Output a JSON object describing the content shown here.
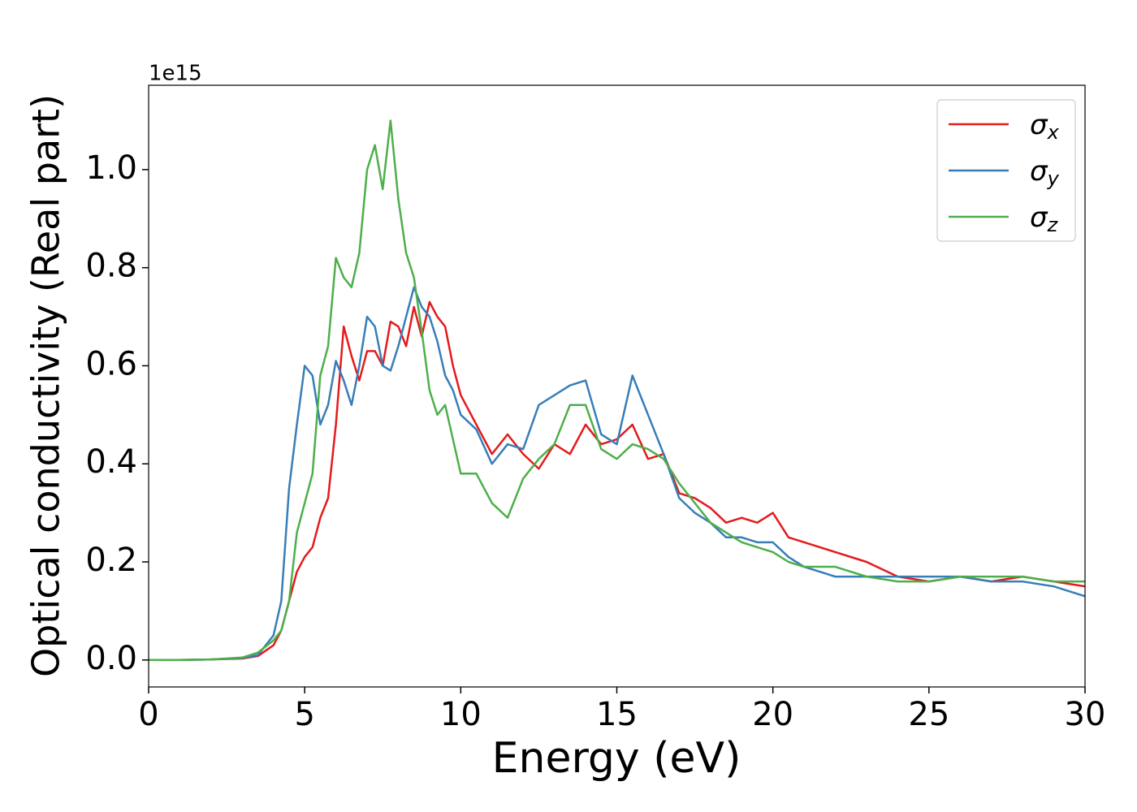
{
  "chart_data": {
    "type": "line",
    "xlabel": "Energy (eV)",
    "ylabel": "Optical conductivity (Real part)",
    "offset_text": "1e15",
    "x": [
      0,
      1,
      2,
      3,
      3.5,
      4,
      4.25,
      4.5,
      4.75,
      5,
      5.25,
      5.5,
      5.75,
      6,
      6.25,
      6.5,
      6.75,
      7,
      7.25,
      7.5,
      7.75,
      8,
      8.25,
      8.5,
      8.75,
      9,
      9.25,
      9.5,
      9.75,
      10,
      10.5,
      11,
      11.5,
      12,
      12.5,
      13,
      13.5,
      14,
      14.5,
      15,
      15.5,
      16,
      16.5,
      17,
      17.5,
      18,
      18.5,
      19,
      19.5,
      20,
      20.5,
      21,
      22,
      23,
      24,
      25,
      26,
      27,
      28,
      29,
      30
    ],
    "series": [
      {
        "name": "σx",
        "color": "#e41a1c",
        "values": [
          0,
          0,
          0.001,
          0.003,
          0.008,
          0.03,
          0.06,
          0.12,
          0.18,
          0.21,
          0.23,
          0.29,
          0.33,
          0.48,
          0.68,
          0.62,
          0.57,
          0.63,
          0.63,
          0.6,
          0.69,
          0.68,
          0.64,
          0.72,
          0.66,
          0.73,
          0.7,
          0.68,
          0.6,
          0.54,
          0.48,
          0.42,
          0.46,
          0.42,
          0.39,
          0.44,
          0.42,
          0.48,
          0.44,
          0.45,
          0.48,
          0.41,
          0.42,
          0.34,
          0.33,
          0.31,
          0.28,
          0.29,
          0.28,
          0.3,
          0.25,
          0.24,
          0.22,
          0.2,
          0.17,
          0.16,
          0.17,
          0.16,
          0.17,
          0.16,
          0.15
        ]
      },
      {
        "name": "σy",
        "color": "#377eb8",
        "values": [
          0,
          0,
          0.001,
          0.004,
          0.01,
          0.05,
          0.12,
          0.35,
          0.48,
          0.6,
          0.58,
          0.48,
          0.52,
          0.61,
          0.57,
          0.52,
          0.6,
          0.7,
          0.68,
          0.6,
          0.59,
          0.64,
          0.7,
          0.76,
          0.72,
          0.7,
          0.65,
          0.58,
          0.55,
          0.5,
          0.47,
          0.4,
          0.44,
          0.43,
          0.52,
          0.54,
          0.56,
          0.57,
          0.46,
          0.44,
          0.58,
          0.5,
          0.42,
          0.33,
          0.3,
          0.28,
          0.25,
          0.25,
          0.24,
          0.24,
          0.21,
          0.19,
          0.17,
          0.17,
          0.17,
          0.17,
          0.17,
          0.16,
          0.16,
          0.15,
          0.13
        ]
      },
      {
        "name": "σz",
        "color": "#4daf4a",
        "values": [
          0,
          0,
          0.001,
          0.005,
          0.015,
          0.04,
          0.06,
          0.12,
          0.26,
          0.32,
          0.38,
          0.58,
          0.64,
          0.82,
          0.78,
          0.76,
          0.83,
          1.0,
          1.05,
          0.96,
          1.1,
          0.94,
          0.83,
          0.78,
          0.67,
          0.55,
          0.5,
          0.52,
          0.45,
          0.38,
          0.38,
          0.32,
          0.29,
          0.37,
          0.41,
          0.44,
          0.52,
          0.52,
          0.43,
          0.41,
          0.44,
          0.43,
          0.41,
          0.36,
          0.32,
          0.28,
          0.26,
          0.24,
          0.23,
          0.22,
          0.2,
          0.19,
          0.19,
          0.17,
          0.16,
          0.16,
          0.17,
          0.17,
          0.17,
          0.16,
          0.16
        ]
      }
    ],
    "xlim": [
      0,
      30
    ],
    "xticks": [
      0,
      5,
      10,
      15,
      20,
      25,
      30
    ],
    "ylim": [
      -0.055,
      1.172
    ],
    "yticks": [
      {
        "value": 0,
        "label": "0.0"
      },
      0.2,
      0.4,
      0.6,
      0.8,
      {
        "value": 1,
        "label": "1.0"
      }
    ],
    "legend": "upper right"
  }
}
